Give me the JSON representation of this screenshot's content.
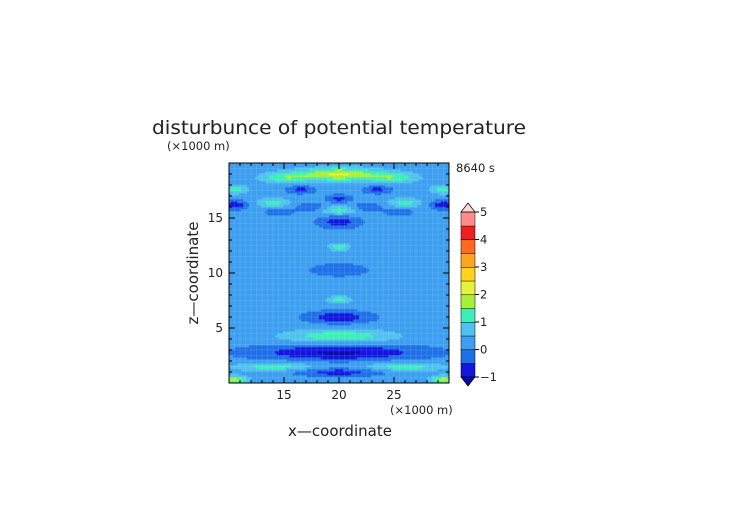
{
  "chart_data": {
    "type": "heatmap",
    "title": "disturbunce of potential temperature",
    "xlabel": "x—coordinate",
    "ylabel": "z—coordinate",
    "x_unit": "(×1000 m)",
    "y_unit": "(×1000 m)",
    "time_label": "8640 s",
    "xlim": [
      10,
      30
    ],
    "ylim": [
      0,
      20
    ],
    "x_ticks": [
      "15",
      "20",
      "25"
    ],
    "x_tick_values": [
      15,
      20,
      25
    ],
    "y_ticks": [
      "5",
      "10",
      "15"
    ],
    "y_tick_values": [
      5,
      10,
      15
    ],
    "grid": true,
    "colorbar": {
      "ticks": [
        "5",
        "4",
        "3",
        "2",
        "1",
        "0",
        "−1"
      ],
      "tick_values": [
        5,
        4,
        3,
        2,
        1,
        0,
        -1
      ],
      "levels": [
        -1,
        -0.5,
        0,
        0.5,
        1,
        1.5,
        2,
        2.5,
        3,
        3.5,
        4,
        4.5,
        5
      ],
      "colors": [
        "#1515e0",
        "#1f6fe8",
        "#3d9ff0",
        "#4fc2ee",
        "#3cefb8",
        "#a6f03c",
        "#e8f23a",
        "#ffd21e",
        "#ffa41e",
        "#ff6a1e",
        "#f02020",
        "#ff8c8c",
        "#ffb5b5"
      ],
      "under_color": "#0a0ab0",
      "over_color": "#ffd5d5"
    },
    "background_value": 0.2,
    "features": [
      {
        "x": 20,
        "z": 19.0,
        "wx": 3.6,
        "wz": 0.6,
        "value": 1.9
      },
      {
        "x": 15,
        "z": 18.7,
        "wx": 2.2,
        "wz": 0.5,
        "value": 1.1
      },
      {
        "x": 25,
        "z": 18.7,
        "wx": 2.2,
        "wz": 0.5,
        "value": 1.1
      },
      {
        "x": 10.6,
        "z": 17.6,
        "wx": 1.2,
        "wz": 0.4,
        "value": 1.0
      },
      {
        "x": 29.4,
        "z": 17.6,
        "wx": 1.2,
        "wz": 0.4,
        "value": 1.0
      },
      {
        "x": 16.5,
        "z": 17.6,
        "wx": 1.2,
        "wz": 0.35,
        "value": -0.9
      },
      {
        "x": 23.5,
        "z": 17.6,
        "wx": 1.2,
        "wz": 0.35,
        "value": -0.9
      },
      {
        "x": 20,
        "z": 16.8,
        "wx": 1.1,
        "wz": 0.35,
        "value": -0.9
      },
      {
        "x": 14,
        "z": 16.4,
        "wx": 1.5,
        "wz": 0.45,
        "value": 1.0
      },
      {
        "x": 26,
        "z": 16.4,
        "wx": 1.5,
        "wz": 0.45,
        "value": 1.0
      },
      {
        "x": 10.5,
        "z": 16.2,
        "wx": 1.2,
        "wz": 0.4,
        "value": -1.1
      },
      {
        "x": 29.5,
        "z": 16.2,
        "wx": 1.2,
        "wz": 0.4,
        "value": -1.1
      },
      {
        "x": 17.5,
        "z": 16.0,
        "wx": 1.4,
        "wz": 0.4,
        "value": -0.6
      },
      {
        "x": 22.5,
        "z": 16.0,
        "wx": 1.4,
        "wz": 0.4,
        "value": -0.6
      },
      {
        "x": 14.5,
        "z": 15.6,
        "wx": 1.2,
        "wz": 0.35,
        "value": -0.7
      },
      {
        "x": 25.5,
        "z": 15.6,
        "wx": 1.2,
        "wz": 0.35,
        "value": -0.7
      },
      {
        "x": 20,
        "z": 15.7,
        "wx": 1.6,
        "wz": 0.45,
        "value": 1.1
      },
      {
        "x": 20,
        "z": 14.7,
        "wx": 1.8,
        "wz": 0.6,
        "value": -1.0
      },
      {
        "x": 20,
        "z": 12.4,
        "wx": 0.9,
        "wz": 0.35,
        "value": 1.1
      },
      {
        "x": 20,
        "z": 10.3,
        "wx": 3.2,
        "wz": 0.7,
        "value": -0.4
      },
      {
        "x": 20,
        "z": 7.6,
        "wx": 1.1,
        "wz": 0.35,
        "value": 1.0
      },
      {
        "x": 20,
        "z": 6.0,
        "wx": 2.8,
        "wz": 0.55,
        "value": -1.1
      },
      {
        "x": 20,
        "z": 4.3,
        "wx": 5.0,
        "wz": 0.6,
        "value": 1.2
      },
      {
        "x": 20,
        "z": 2.8,
        "wx": 7.5,
        "wz": 0.7,
        "value": -1.3
      },
      {
        "x": 14,
        "z": 1.5,
        "wx": 3.5,
        "wz": 0.4,
        "value": 1.1
      },
      {
        "x": 26,
        "z": 1.5,
        "wx": 3.5,
        "wz": 0.4,
        "value": 1.1
      },
      {
        "x": 20,
        "z": 1.0,
        "wx": 4.0,
        "wz": 0.35,
        "value": -1.0
      },
      {
        "x": 10.5,
        "z": 0.3,
        "wx": 1.2,
        "wz": 0.4,
        "value": 1.6
      },
      {
        "x": 29.5,
        "z": 0.3,
        "wx": 1.2,
        "wz": 0.4,
        "value": 1.6
      }
    ]
  }
}
